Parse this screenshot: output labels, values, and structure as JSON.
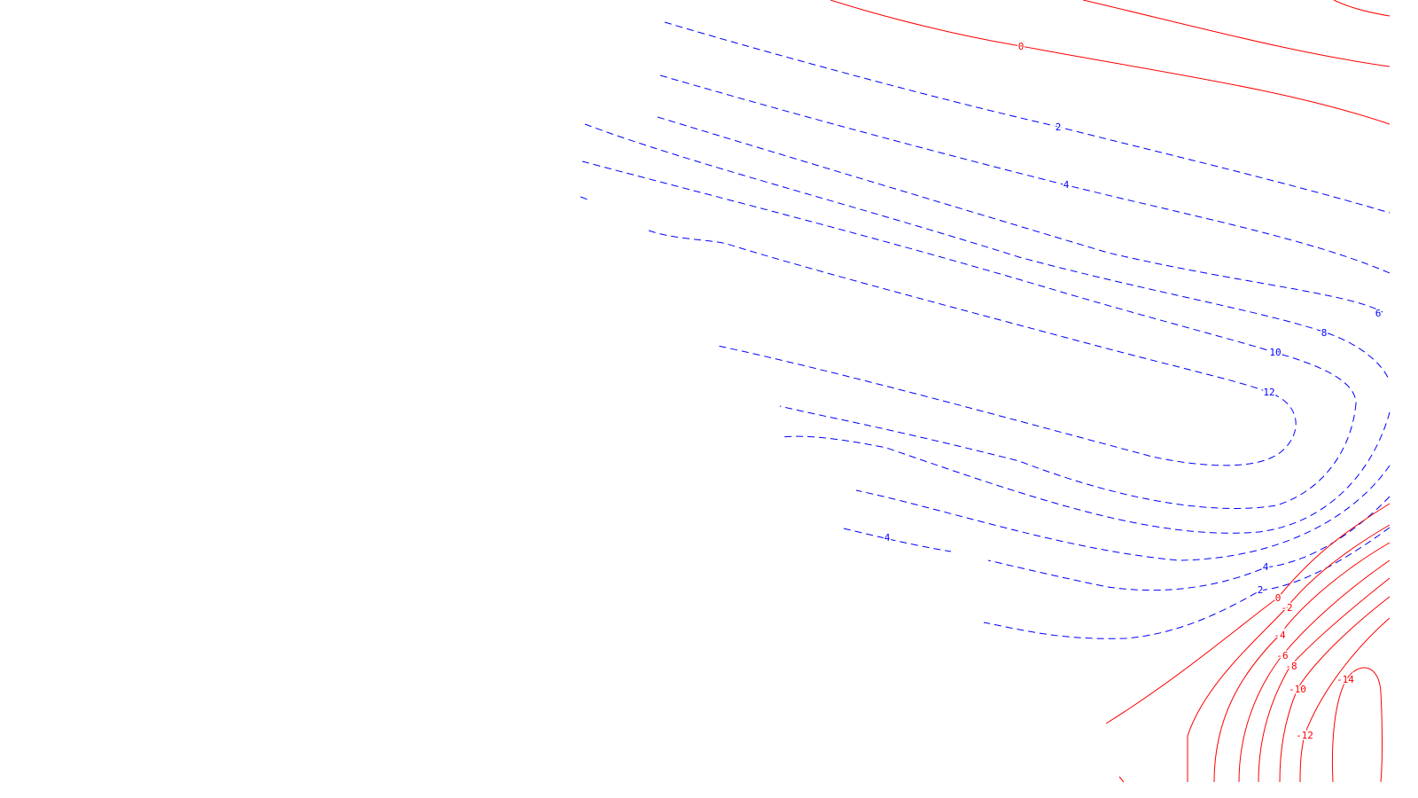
{
  "chart_data": {
    "type": "contour",
    "title": "",
    "xlabel": "",
    "ylabel": "",
    "grid": false,
    "legend": "none",
    "colors": {
      "positive": "#0000ff",
      "negative": "#ff0000"
    },
    "styles": {
      "positive": "dashed",
      "negative": "solid"
    },
    "contour_labels": [
      {
        "text": "0",
        "level": 0,
        "sign": "negative"
      },
      {
        "text": "2",
        "level": 2,
        "sign": "positive"
      },
      {
        "text": "4",
        "level": 4,
        "sign": "positive"
      },
      {
        "text": "6",
        "level": 6,
        "sign": "positive"
      },
      {
        "text": "8",
        "level": 8,
        "sign": "positive"
      },
      {
        "text": "10",
        "level": 10,
        "sign": "positive"
      },
      {
        "text": "12",
        "level": 12,
        "sign": "positive"
      },
      {
        "text": "4",
        "level": 4,
        "sign": "positive"
      },
      {
        "text": "4",
        "level": 4,
        "sign": "positive"
      },
      {
        "text": "2",
        "level": 2,
        "sign": "positive"
      },
      {
        "text": "0",
        "level": 0,
        "sign": "negative"
      },
      {
        "text": "-2",
        "level": -2,
        "sign": "negative"
      },
      {
        "text": "-4",
        "level": -4,
        "sign": "negative"
      },
      {
        "text": "-6",
        "level": -6,
        "sign": "negative"
      },
      {
        "text": "-8",
        "level": -8,
        "sign": "negative"
      },
      {
        "text": "-10",
        "level": -10,
        "sign": "negative"
      },
      {
        "text": "-12",
        "level": -12,
        "sign": "negative"
      },
      {
        "text": "-14",
        "level": -14,
        "sign": "negative"
      }
    ]
  }
}
